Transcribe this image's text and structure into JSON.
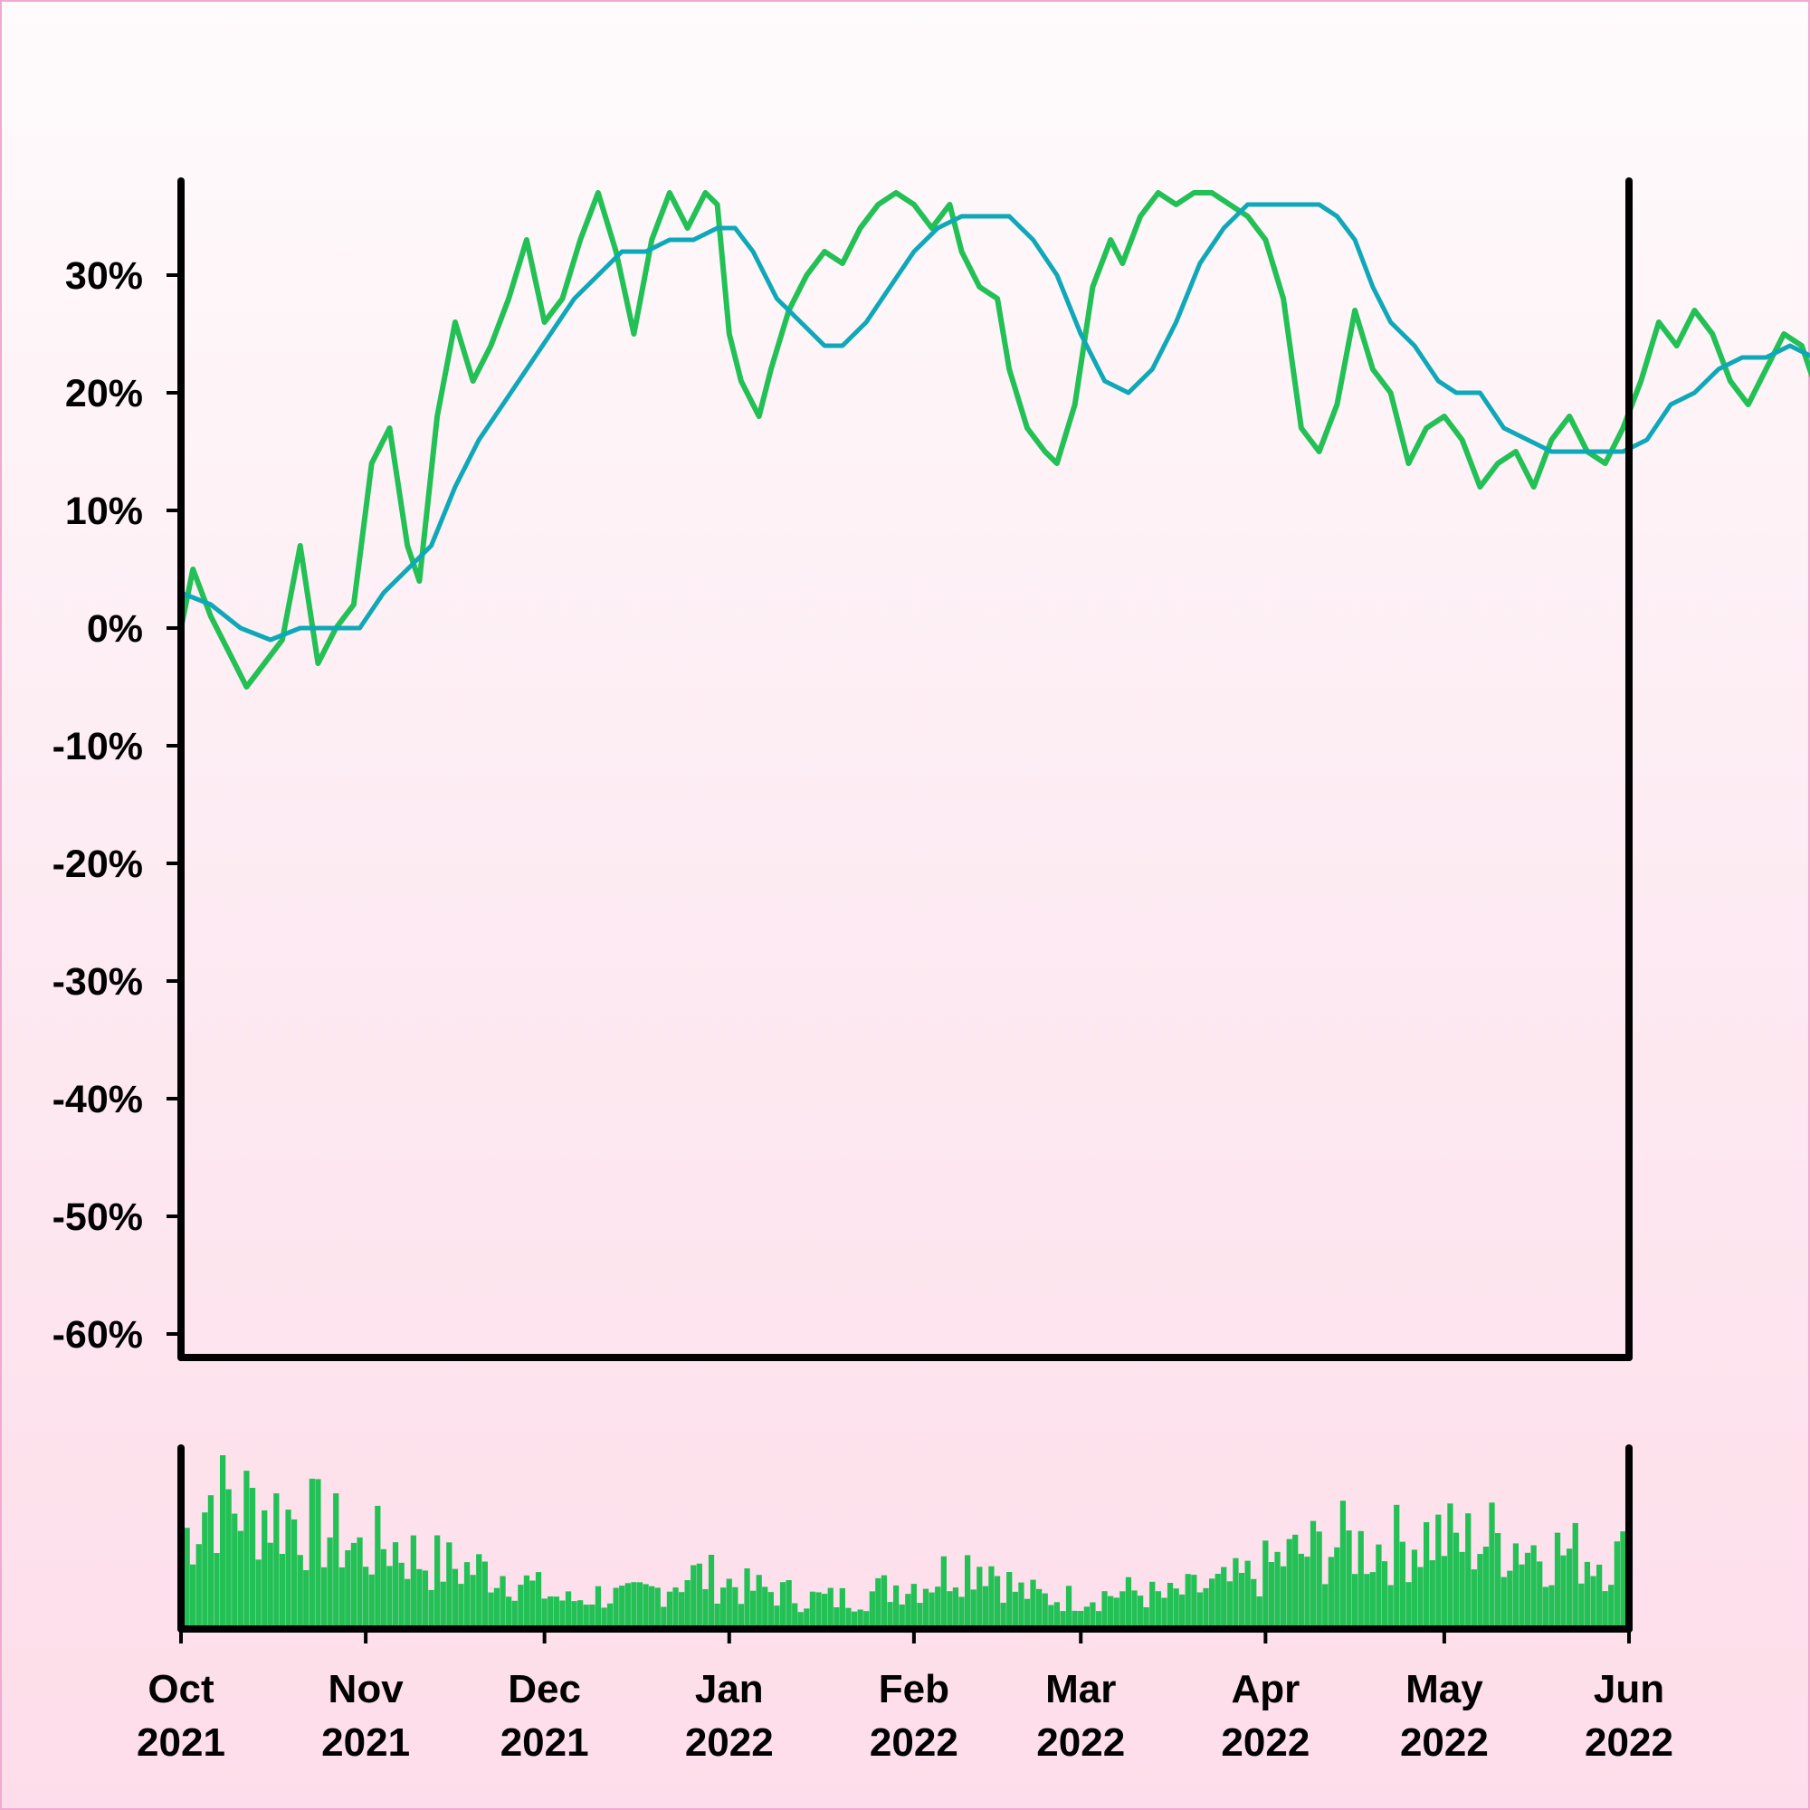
{
  "chart_data": [
    {
      "type": "line",
      "title": "",
      "xlabel": "",
      "ylabel": "",
      "ylim": [
        -0.62,
        0.38
      ],
      "xlim": [
        "2021-10-01",
        "2022-06-01"
      ],
      "y_format": "percent",
      "y_ticks": [
        -0.6,
        -0.5,
        -0.4,
        -0.3,
        -0.2,
        -0.1,
        0.0,
        0.1,
        0.2,
        0.3
      ],
      "y_tick_labels": [
        "-60%",
        "-50%",
        "-40%",
        "-30%",
        "-20%",
        "-10%",
        "0%",
        "10%",
        "20%",
        "30%"
      ],
      "grid": false,
      "legend": "none",
      "series": [
        {
          "role": "daily value",
          "color": "#22c055",
          "anchors": [
            [
              "2021-10-01",
              0.0
            ],
            [
              "2021-10-03",
              0.05
            ],
            [
              "2021-10-06",
              0.01
            ],
            [
              "2021-10-09",
              -0.02
            ],
            [
              "2021-10-12",
              -0.05
            ],
            [
              "2021-10-15",
              -0.03
            ],
            [
              "2021-10-18",
              -0.01
            ],
            [
              "2021-10-21",
              0.07
            ],
            [
              "2021-10-24",
              -0.03
            ],
            [
              "2021-10-27",
              0.0
            ],
            [
              "2021-10-30",
              0.02
            ],
            [
              "2021-11-02",
              0.14
            ],
            [
              "2021-11-05",
              0.17
            ],
            [
              "2021-11-08",
              0.07
            ],
            [
              "2021-11-10",
              0.04
            ],
            [
              "2021-11-13",
              0.18
            ],
            [
              "2021-11-16",
              0.26
            ],
            [
              "2021-11-19",
              0.21
            ],
            [
              "2021-11-22",
              0.24
            ],
            [
              "2021-11-25",
              0.28
            ],
            [
              "2021-11-28",
              0.33
            ],
            [
              "2021-12-01",
              0.26
            ],
            [
              "2021-12-04",
              0.28
            ],
            [
              "2021-12-07",
              0.33
            ],
            [
              "2021-12-10",
              0.37
            ],
            [
              "2021-12-13",
              0.32
            ],
            [
              "2021-12-16",
              0.25
            ],
            [
              "2021-12-19",
              0.33
            ],
            [
              "2021-12-22",
              0.37
            ],
            [
              "2021-12-25",
              0.34
            ],
            [
              "2021-12-28",
              0.37
            ],
            [
              "2021-12-30",
              0.36
            ],
            [
              "2022-01-01",
              0.25
            ],
            [
              "2022-01-03",
              0.21
            ],
            [
              "2022-01-06",
              0.18
            ],
            [
              "2022-01-08",
              0.22
            ],
            [
              "2022-01-11",
              0.27
            ],
            [
              "2022-01-14",
              0.3
            ],
            [
              "2022-01-17",
              0.32
            ],
            [
              "2022-01-20",
              0.31
            ],
            [
              "2022-01-23",
              0.34
            ],
            [
              "2022-01-26",
              0.36
            ],
            [
              "2022-01-29",
              0.37
            ],
            [
              "2022-02-01",
              0.36
            ],
            [
              "2022-02-04",
              0.34
            ],
            [
              "2022-02-07",
              0.36
            ],
            [
              "2022-02-09",
              0.32
            ],
            [
              "2022-02-12",
              0.29
            ],
            [
              "2022-02-15",
              0.28
            ],
            [
              "2022-02-17",
              0.22
            ],
            [
              "2022-02-20",
              0.17
            ],
            [
              "2022-02-23",
              0.15
            ],
            [
              "2022-02-25",
              0.14
            ],
            [
              "2022-02-28",
              0.19
            ],
            [
              "2022-03-03",
              0.29
            ],
            [
              "2022-03-06",
              0.33
            ],
            [
              "2022-03-08",
              0.31
            ],
            [
              "2022-03-11",
              0.35
            ],
            [
              "2022-03-14",
              0.37
            ],
            [
              "2022-03-17",
              0.36
            ],
            [
              "2022-03-20",
              0.37
            ],
            [
              "2022-03-23",
              0.37
            ],
            [
              "2022-03-26",
              0.36
            ],
            [
              "2022-03-29",
              0.35
            ],
            [
              "2022-04-01",
              0.33
            ],
            [
              "2022-04-04",
              0.28
            ],
            [
              "2022-04-07",
              0.17
            ],
            [
              "2022-04-10",
              0.15
            ],
            [
              "2022-04-13",
              0.19
            ],
            [
              "2022-04-16",
              0.27
            ],
            [
              "2022-04-19",
              0.22
            ],
            [
              "2022-04-22",
              0.2
            ],
            [
              "2022-04-25",
              0.14
            ],
            [
              "2022-04-28",
              0.17
            ],
            [
              "2022-05-01",
              0.18
            ],
            [
              "2022-05-04",
              0.16
            ],
            [
              "2022-05-07",
              0.12
            ],
            [
              "2022-05-10",
              0.14
            ],
            [
              "2022-05-13",
              0.15
            ],
            [
              "2022-05-16",
              0.12
            ],
            [
              "2022-05-19",
              0.16
            ],
            [
              "2022-05-22",
              0.18
            ],
            [
              "2022-05-25",
              0.15
            ],
            [
              "2022-05-28",
              0.14
            ],
            [
              "2022-05-31",
              0.17
            ],
            [
              "2022-06-03",
              0.21
            ],
            [
              "2022-06-06",
              0.26
            ],
            [
              "2022-06-09",
              0.24
            ],
            [
              "2022-06-12",
              0.27
            ],
            [
              "2022-06-15",
              0.25
            ],
            [
              "2022-06-18",
              0.21
            ],
            [
              "2022-06-21",
              0.19
            ],
            [
              "2022-06-24",
              0.22
            ],
            [
              "2022-06-27",
              0.25
            ],
            [
              "2022-06-30",
              0.24
            ],
            [
              "2022-07-02",
              0.21
            ],
            [
              "2022-07-04",
              0.11
            ]
          ]
        },
        {
          "role": "moving average",
          "color": "#0fa8b8",
          "anchors": [
            [
              "2021-10-01",
              0.03
            ],
            [
              "2021-10-06",
              0.02
            ],
            [
              "2021-10-11",
              0.0
            ],
            [
              "2021-10-16",
              -0.01
            ],
            [
              "2021-10-21",
              0.0
            ],
            [
              "2021-10-26",
              0.0
            ],
            [
              "2021-10-31",
              0.0
            ],
            [
              "2021-11-04",
              0.03
            ],
            [
              "2021-11-08",
              0.05
            ],
            [
              "2021-11-12",
              0.07
            ],
            [
              "2021-11-16",
              0.12
            ],
            [
              "2021-11-20",
              0.16
            ],
            [
              "2021-11-24",
              0.19
            ],
            [
              "2021-11-28",
              0.22
            ],
            [
              "2021-12-02",
              0.25
            ],
            [
              "2021-12-06",
              0.28
            ],
            [
              "2021-12-10",
              0.3
            ],
            [
              "2021-12-14",
              0.32
            ],
            [
              "2021-12-18",
              0.32
            ],
            [
              "2021-12-22",
              0.33
            ],
            [
              "2021-12-26",
              0.33
            ],
            [
              "2021-12-30",
              0.34
            ],
            [
              "2022-01-02",
              0.34
            ],
            [
              "2022-01-05",
              0.32
            ],
            [
              "2022-01-09",
              0.28
            ],
            [
              "2022-01-13",
              0.26
            ],
            [
              "2022-01-17",
              0.24
            ],
            [
              "2022-01-20",
              0.24
            ],
            [
              "2022-01-24",
              0.26
            ],
            [
              "2022-01-28",
              0.29
            ],
            [
              "2022-02-01",
              0.32
            ],
            [
              "2022-02-05",
              0.34
            ],
            [
              "2022-02-09",
              0.35
            ],
            [
              "2022-02-13",
              0.35
            ],
            [
              "2022-02-17",
              0.35
            ],
            [
              "2022-02-21",
              0.33
            ],
            [
              "2022-02-25",
              0.3
            ],
            [
              "2022-03-01",
              0.25
            ],
            [
              "2022-03-05",
              0.21
            ],
            [
              "2022-03-09",
              0.2
            ],
            [
              "2022-03-13",
              0.22
            ],
            [
              "2022-03-17",
              0.26
            ],
            [
              "2022-03-21",
              0.31
            ],
            [
              "2022-03-25",
              0.34
            ],
            [
              "2022-03-29",
              0.36
            ],
            [
              "2022-04-02",
              0.36
            ],
            [
              "2022-04-06",
              0.36
            ],
            [
              "2022-04-10",
              0.36
            ],
            [
              "2022-04-13",
              0.35
            ],
            [
              "2022-04-16",
              0.33
            ],
            [
              "2022-04-19",
              0.29
            ],
            [
              "2022-04-22",
              0.26
            ],
            [
              "2022-04-26",
              0.24
            ],
            [
              "2022-04-30",
              0.21
            ],
            [
              "2022-05-03",
              0.2
            ],
            [
              "2022-05-07",
              0.2
            ],
            [
              "2022-05-11",
              0.17
            ],
            [
              "2022-05-15",
              0.16
            ],
            [
              "2022-05-19",
              0.15
            ],
            [
              "2022-05-23",
              0.15
            ],
            [
              "2022-05-27",
              0.15
            ],
            [
              "2022-05-31",
              0.15
            ],
            [
              "2022-06-04",
              0.16
            ],
            [
              "2022-06-08",
              0.19
            ],
            [
              "2022-06-12",
              0.2
            ],
            [
              "2022-06-16",
              0.22
            ],
            [
              "2022-06-20",
              0.23
            ],
            [
              "2022-06-24",
              0.23
            ],
            [
              "2022-06-28",
              0.24
            ],
            [
              "2022-07-02",
              0.23
            ],
            [
              "2022-07-04",
              0.22
            ]
          ]
        }
      ]
    },
    {
      "type": "bar",
      "role": "volume",
      "color": "#22c055",
      "title": "",
      "xlabel": "",
      "ylabel": "",
      "x_ticks": [
        "2021-10-01",
        "2021-11-01",
        "2021-12-01",
        "2022-01-01",
        "2022-02-01",
        "2022-03-01",
        "2022-04-01",
        "2022-05-01",
        "2022-06-01"
      ],
      "x_tick_labels": [
        [
          "Oct",
          "2021"
        ],
        [
          "Nov",
          "2021"
        ],
        [
          "Dec",
          "2021"
        ],
        [
          "Jan",
          "2022"
        ],
        [
          "Feb",
          "2022"
        ],
        [
          "Mar",
          "2022"
        ],
        [
          "Apr",
          "2022"
        ],
        [
          "May",
          "2022"
        ],
        [
          "Jun",
          "2022"
        ]
      ],
      "ylim": [
        0,
        1
      ],
      "profile": [
        [
          "2021-10-01",
          0.55
        ],
        [
          "2021-10-06",
          0.85
        ],
        [
          "2021-10-11",
          0.8
        ],
        [
          "2021-10-16",
          0.75
        ],
        [
          "2021-10-21",
          0.7
        ],
        [
          "2021-10-26",
          0.62
        ],
        [
          "2021-10-31",
          0.5
        ],
        [
          "2021-11-05",
          0.55
        ],
        [
          "2021-11-10",
          0.45
        ],
        [
          "2021-11-15",
          0.4
        ],
        [
          "2021-11-20",
          0.38
        ],
        [
          "2021-11-25",
          0.35
        ],
        [
          "2021-11-30",
          0.25
        ],
        [
          "2021-12-05",
          0.18
        ],
        [
          "2021-12-10",
          0.22
        ],
        [
          "2021-12-15",
          0.2
        ],
        [
          "2021-12-20",
          0.25
        ],
        [
          "2021-12-25",
          0.35
        ],
        [
          "2021-12-30",
          0.32
        ],
        [
          "2022-01-04",
          0.26
        ],
        [
          "2022-01-09",
          0.24
        ],
        [
          "2022-01-14",
          0.2
        ],
        [
          "2022-01-19",
          0.19
        ],
        [
          "2022-01-24",
          0.22
        ],
        [
          "2022-01-29",
          0.28
        ],
        [
          "2022-02-03",
          0.3
        ],
        [
          "2022-02-08",
          0.4
        ],
        [
          "2022-02-13",
          0.45
        ],
        [
          "2022-02-18",
          0.25
        ],
        [
          "2022-02-23",
          0.2
        ],
        [
          "2022-02-28",
          0.2
        ],
        [
          "2022-03-05",
          0.22
        ],
        [
          "2022-03-10",
          0.24
        ],
        [
          "2022-03-15",
          0.2
        ],
        [
          "2022-03-20",
          0.25
        ],
        [
          "2022-03-25",
          0.28
        ],
        [
          "2022-03-30",
          0.34
        ],
        [
          "2022-04-04",
          0.45
        ],
        [
          "2022-04-09",
          0.5
        ],
        [
          "2022-04-14",
          0.55
        ],
        [
          "2022-04-19",
          0.52
        ],
        [
          "2022-04-24",
          0.55
        ],
        [
          "2022-04-29",
          0.6
        ],
        [
          "2022-05-04",
          0.55
        ],
        [
          "2022-05-09",
          0.58
        ],
        [
          "2022-05-14",
          0.55
        ],
        [
          "2022-05-19",
          0.5
        ],
        [
          "2022-05-24",
          0.48
        ],
        [
          "2022-05-29",
          0.45
        ],
        [
          "2022-06-03",
          0.48
        ],
        [
          "2022-06-08",
          0.52
        ],
        [
          "2022-06-13",
          0.45
        ],
        [
          "2022-06-18",
          0.5
        ],
        [
          "2022-06-23",
          0.48
        ],
        [
          "2022-06-28",
          0.5
        ],
        [
          "2022-07-04",
          0.45
        ]
      ]
    }
  ]
}
